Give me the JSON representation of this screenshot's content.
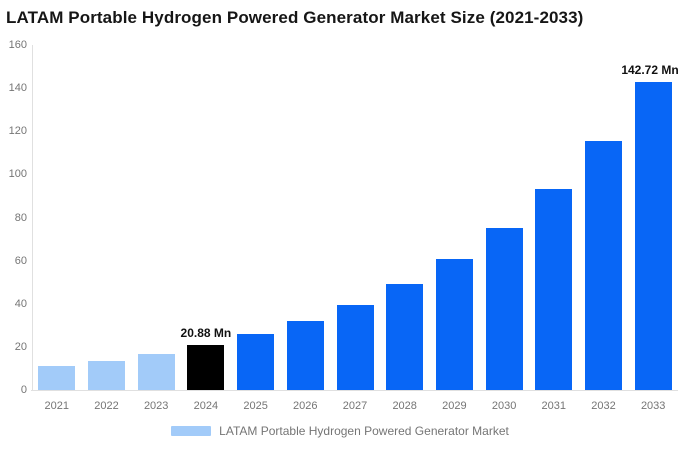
{
  "title": "LATAM Portable Hydrogen Powered Generator Market Size (2021-2033)",
  "chart_data": {
    "type": "bar",
    "title": "LATAM Portable Hydrogen Powered Generator Market Size (2021-2033)",
    "categories": [
      "2021",
      "2022",
      "2023",
      "2024",
      "2025",
      "2026",
      "2027",
      "2028",
      "2029",
      "2030",
      "2031",
      "2032",
      "2033"
    ],
    "series": [
      {
        "name": "LATAM Portable Hydrogen Powered Generator Market",
        "values": [
          11.0,
          13.6,
          16.9,
          20.88,
          25.85,
          32.0,
          39.6,
          49.1,
          60.7,
          75.2,
          93.1,
          115.3,
          142.72
        ]
      }
    ],
    "unit": "Mn",
    "data_labels": {
      "2024": "20.88 Mn",
      "2033": "142.72 Mn"
    },
    "xlabel": "",
    "ylabel": "",
    "ylim": [
      0,
      160
    ],
    "yticks": [
      0,
      20,
      40,
      60,
      80,
      100,
      120,
      140,
      160
    ],
    "grid": false,
    "legend_position": "bottom",
    "bar_colors": {
      "2021": "#A2CBF9",
      "2022": "#A2CBF9",
      "2023": "#A2CBF9",
      "2024": "#000000",
      "default": "#0866F6"
    },
    "colors": {
      "light_blue": "#A2CBF9",
      "blue": "#0866F6",
      "black": "#000000",
      "axis_text": "#757575",
      "axis_line": "#E0E0E0",
      "value_label_text": "#111111",
      "title_text": "#161616",
      "background": "#FFFFFF"
    }
  },
  "legend": {
    "label": "LATAM Portable Hydrogen Powered Generator Market",
    "swatch_color": "#A2CBF9"
  }
}
